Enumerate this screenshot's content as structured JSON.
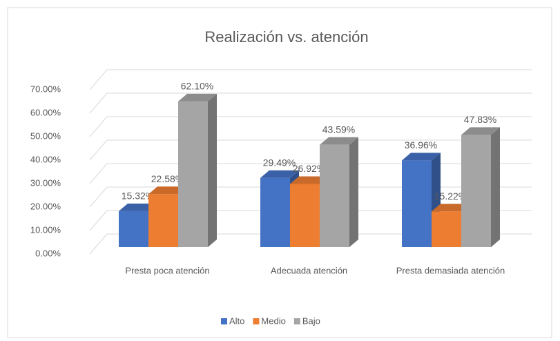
{
  "chart_data": {
    "type": "bar3d",
    "title": "Realización vs. atención",
    "categories": [
      "Presta poca atención",
      "Adecuada atención",
      "Presta demasiada atención"
    ],
    "series": [
      {
        "name": "Alto",
        "color": "#4472c4",
        "values": [
          15.32,
          29.49,
          36.96
        ],
        "value_labels": [
          "15.32%",
          "29.49%",
          "36.96%"
        ]
      },
      {
        "name": "Medio",
        "color": "#ed7d31",
        "values": [
          22.58,
          26.92,
          15.22
        ],
        "value_labels": [
          "22.58%",
          "26.92%",
          "15.22%"
        ]
      },
      {
        "name": "Bajo",
        "color": "#a5a5a5",
        "values": [
          62.1,
          43.59,
          47.83
        ],
        "value_labels": [
          "62.10%",
          "43.59%",
          "47.83%"
        ]
      }
    ],
    "ylim": [
      0,
      70
    ],
    "yticks": [
      {
        "value": 0,
        "label": "0.00%"
      },
      {
        "value": 10,
        "label": "10.00%"
      },
      {
        "value": 20,
        "label": "20.00%"
      },
      {
        "value": 30,
        "label": "30.00%"
      },
      {
        "value": 40,
        "label": "40.00%"
      },
      {
        "value": 50,
        "label": "50.00%"
      },
      {
        "value": 60,
        "label": "60.00%"
      },
      {
        "value": 70,
        "label": "70.00%"
      }
    ],
    "grid": true,
    "legend": "bottom"
  }
}
